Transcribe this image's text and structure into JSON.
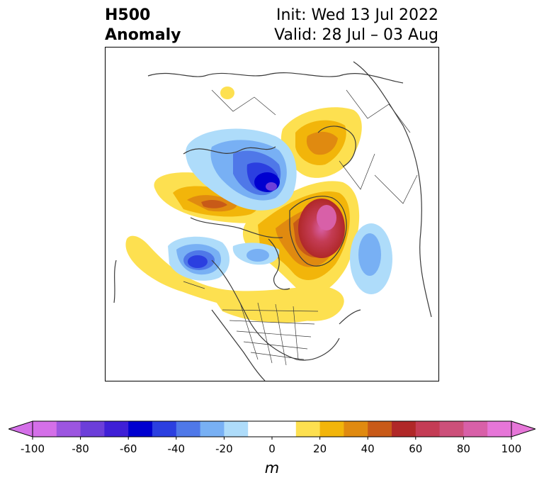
{
  "header": {
    "title_line1": "H500",
    "title_line2": "Anomaly",
    "init_text": "Init: Wed 13 Jul 2022",
    "valid_text": "Valid: 28 Jul – 03 Aug"
  },
  "map": {
    "field": "500 hPa geopotential height anomaly",
    "projection": "north polar stereographic",
    "features": [
      {
        "name": "negative-anomaly-arctic",
        "sign": "negative"
      },
      {
        "name": "negative-anomaly-gulf-of-alaska",
        "sign": "negative"
      },
      {
        "name": "negative-anomaly-north-atlantic",
        "sign": "negative"
      },
      {
        "name": "positive-anomaly-greenland",
        "sign": "positive"
      },
      {
        "name": "positive-anomaly-scandinavia",
        "sign": "positive"
      },
      {
        "name": "positive-anomaly-bering",
        "sign": "positive"
      },
      {
        "name": "positive-anomaly-north-america",
        "sign": "positive"
      }
    ]
  },
  "colorbar": {
    "unit": "m",
    "min": -100,
    "max": 100,
    "step": 10,
    "colors": [
      "#d46fe8",
      "#9c55e0",
      "#6c3ed9",
      "#3f1fd6",
      "#0000d0",
      "#2b3fe0",
      "#4f78e8",
      "#78b0f4",
      "#aedcfa",
      "#ffffff",
      "#ffffff",
      "#fde050",
      "#f2b50a",
      "#e08a10",
      "#c85a18",
      "#b02828",
      "#c43c55",
      "#cc507a",
      "#d860a8",
      "#e676d8"
    ],
    "ticks": [
      "-100",
      "-80",
      "-60",
      "-40",
      "-20",
      "0",
      "20",
      "40",
      "60",
      "80",
      "100"
    ]
  }
}
